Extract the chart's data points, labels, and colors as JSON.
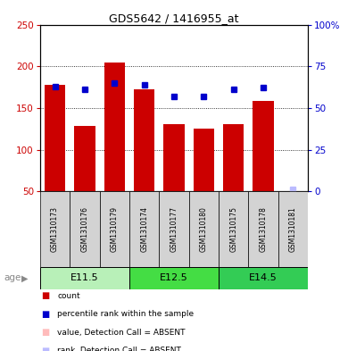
{
  "title": "GDS5642 / 1416955_at",
  "samples": [
    "GSM1310173",
    "GSM1310176",
    "GSM1310179",
    "GSM1310174",
    "GSM1310177",
    "GSM1310180",
    "GSM1310175",
    "GSM1310178",
    "GSM1310181"
  ],
  "count_values": [
    178,
    128,
    205,
    172,
    131,
    125,
    131,
    158,
    50
  ],
  "rank_values": [
    63,
    61,
    65,
    64,
    57,
    57,
    61,
    62,
    1
  ],
  "absent_flags": [
    false,
    false,
    false,
    false,
    false,
    false,
    false,
    false,
    true
  ],
  "age_groups": [
    {
      "label": "E11.5",
      "start": 0,
      "end": 3
    },
    {
      "label": "E12.5",
      "start": 3,
      "end": 6
    },
    {
      "label": "E14.5",
      "start": 6,
      "end": 9
    }
  ],
  "age_colors": [
    "#b8f0b8",
    "#44dd44",
    "#33cc55"
  ],
  "ylim_left": [
    50,
    250
  ],
  "ylim_right": [
    0,
    100
  ],
  "bar_color": "#cc0000",
  "rank_color": "#0000cc",
  "absent_bar_color": "#ffbbbb",
  "absent_rank_color": "#bbbbff",
  "yticks_left": [
    50,
    100,
    150,
    200,
    250
  ],
  "ytick_labels_right": [
    "0",
    "25",
    "50",
    "75",
    "100%"
  ],
  "yticks_right": [
    0,
    25,
    50,
    75,
    100
  ],
  "tick_color_left": "#cc0000",
  "tick_color_right": "#0000cc",
  "bar_width": 0.7,
  "rank_marker_size": 5
}
